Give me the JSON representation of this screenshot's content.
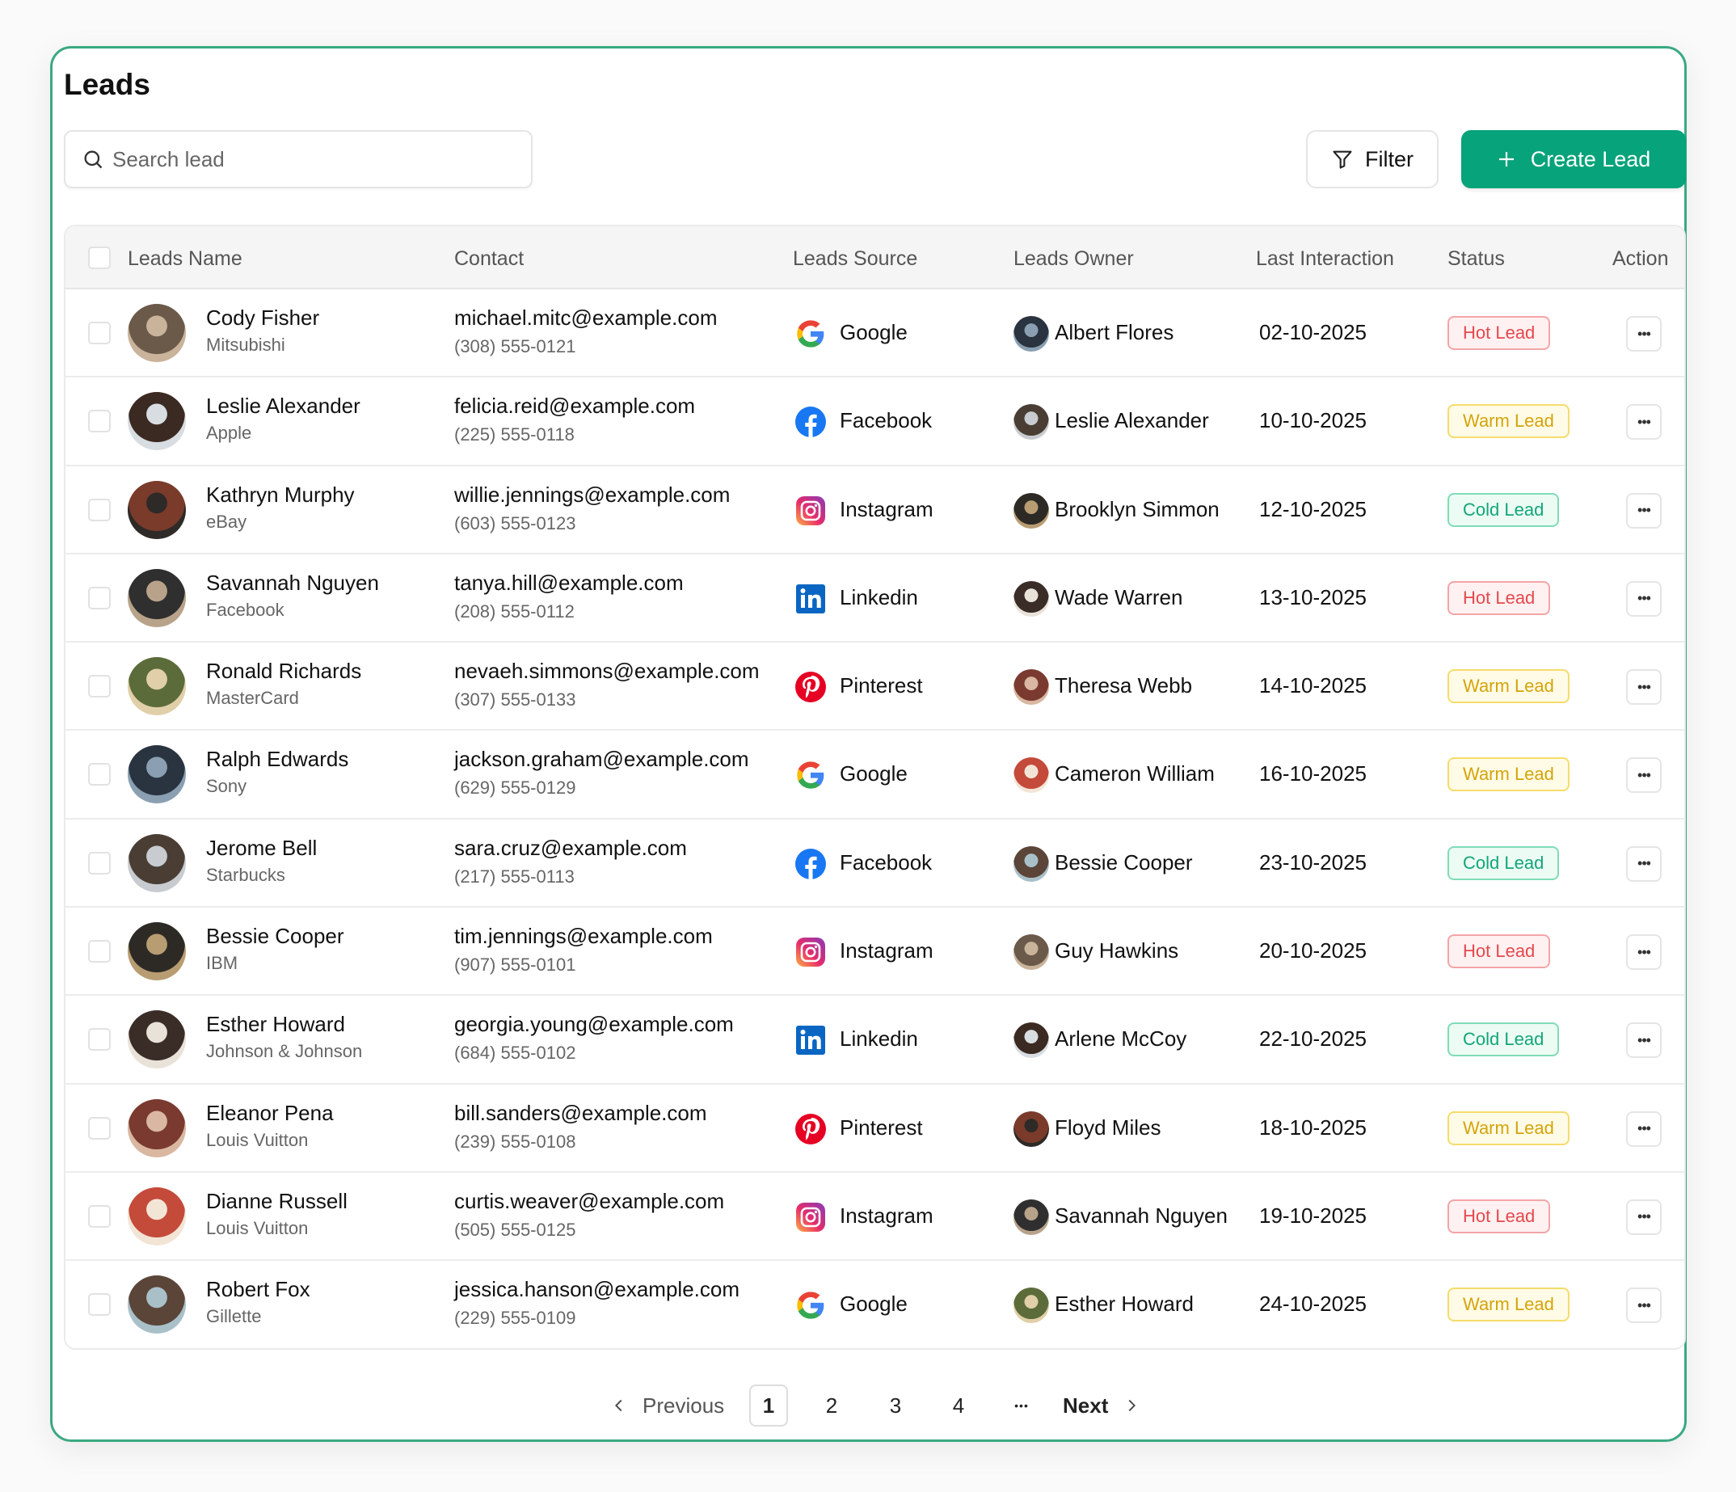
{
  "page": {
    "title": "Leads"
  },
  "toolbar": {
    "search_placeholder": "Search lead",
    "filter_label": "Filter",
    "create_label": "Create Lead"
  },
  "colors": {
    "accent": "#07a37a",
    "border": "#3aa981",
    "hot": {
      "text": "#e5484d",
      "bg": "#fff1f1",
      "border": "#f3a5a7"
    },
    "warm": {
      "text": "#d4a40a",
      "bg": "#fffbe6",
      "border": "#f5dc6b"
    },
    "cold": {
      "text": "#12a679",
      "bg": "#ecfbf4",
      "border": "#7fdcb8"
    }
  },
  "table": {
    "columns": [
      "Leads Name",
      "Contact",
      "Leads Source",
      "Leads Owner",
      "Last Interaction",
      "Status",
      "Action"
    ],
    "rows": [
      {
        "name": "Cody Fisher",
        "company": "Mitsubishi",
        "email": "michael.mitc@example.com",
        "phone": "(308) 555-0121",
        "source": "Google",
        "owner": "Albert Flores",
        "date": "02-10-2025",
        "status": "Hot Lead"
      },
      {
        "name": "Leslie Alexander",
        "company": "Apple",
        "email": "felicia.reid@example.com",
        "phone": "(225) 555-0118",
        "source": "Facebook",
        "owner": "Leslie Alexander",
        "date": "10-10-2025",
        "status": "Warm Lead"
      },
      {
        "name": "Kathryn Murphy",
        "company": "eBay",
        "email": "willie.jennings@example.com",
        "phone": "(603) 555-0123",
        "source": "Instagram",
        "owner": "Brooklyn Simmon",
        "date": "12-10-2025",
        "status": "Cold Lead"
      },
      {
        "name": "Savannah Nguyen",
        "company": "Facebook",
        "email": "tanya.hill@example.com",
        "phone": "(208) 555-0112",
        "source": "Linkedin",
        "owner": "Wade Warren",
        "date": "13-10-2025",
        "status": "Hot Lead"
      },
      {
        "name": "Ronald Richards",
        "company": "MasterCard",
        "email": "nevaeh.simmons@example.com",
        "phone": "(307) 555-0133",
        "source": "Pinterest",
        "owner": "Theresa Webb",
        "date": "14-10-2025",
        "status": "Warm Lead"
      },
      {
        "name": "Ralph Edwards",
        "company": "Sony",
        "email": "jackson.graham@example.com",
        "phone": "(629) 555-0129",
        "source": "Google",
        "owner": "Cameron William",
        "date": "16-10-2025",
        "status": "Warm Lead"
      },
      {
        "name": "Jerome Bell",
        "company": "Starbucks",
        "email": "sara.cruz@example.com",
        "phone": "(217) 555-0113",
        "source": "Facebook",
        "owner": "Bessie Cooper",
        "date": "23-10-2025",
        "status": "Cold Lead"
      },
      {
        "name": "Bessie Cooper",
        "company": "IBM",
        "email": "tim.jennings@example.com",
        "phone": "(907) 555-0101",
        "source": "Instagram",
        "owner": "Guy Hawkins",
        "date": "20-10-2025",
        "status": "Hot Lead"
      },
      {
        "name": "Esther Howard",
        "company": "Johnson & Johnson",
        "email": "georgia.young@example.com",
        "phone": "(684) 555-0102",
        "source": "Linkedin",
        "owner": "Arlene McCoy",
        "date": "22-10-2025",
        "status": "Cold Lead"
      },
      {
        "name": "Eleanor Pena",
        "company": "Louis Vuitton",
        "email": "bill.sanders@example.com",
        "phone": "(239) 555-0108",
        "source": "Pinterest",
        "owner": "Floyd Miles",
        "date": "18-10-2025",
        "status": "Warm Lead"
      },
      {
        "name": "Dianne Russell",
        "company": "Louis Vuitton",
        "email": "curtis.weaver@example.com",
        "phone": "(505) 555-0125",
        "source": "Instagram",
        "owner": "Savannah Nguyen",
        "date": "19-10-2025",
        "status": "Hot Lead"
      },
      {
        "name": "Robert Fox",
        "company": "Gillette",
        "email": "jessica.hanson@example.com",
        "phone": "(229) 555-0109",
        "source": "Google",
        "owner": "Esther Howard",
        "date": "24-10-2025",
        "status": "Warm Lead"
      }
    ]
  },
  "pagination": {
    "previous": "Previous",
    "next": "Next",
    "pages": [
      "1",
      "2",
      "3",
      "4"
    ],
    "ellipsis": "•••",
    "current": "1"
  },
  "icons": {
    "search": "search-icon",
    "filter": "filter-icon",
    "create": "plus-icon",
    "action": "more-horizontal-icon",
    "prev": "chevron-left-icon",
    "next": "chevron-right-icon"
  }
}
